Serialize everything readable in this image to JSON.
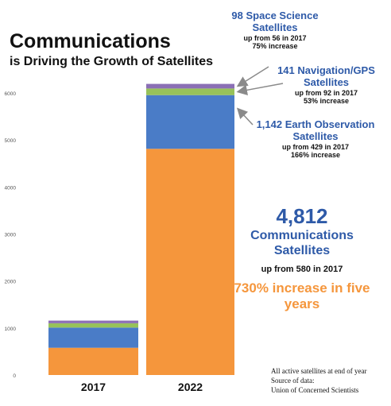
{
  "title": "Communications",
  "subtitle": "is Driving the Growth of Satellites",
  "colors": {
    "communications": "#f5963c",
    "earth_observation": "#4a7cc7",
    "navigation": "#97c25a",
    "space_science": "#8b6fb5",
    "annotation_blue": "#2e5aa8",
    "arrow": "#8a8a8a"
  },
  "chart_data": {
    "type": "bar",
    "stacked": true,
    "categories": [
      "2017",
      "2022"
    ],
    "yticks": [
      "0",
      "1000",
      "2000",
      "3000",
      "4000",
      "5000",
      "6000"
    ],
    "ylim": [
      0,
      6300
    ],
    "grid": false,
    "series": [
      {
        "key": "communications",
        "values": [
          580,
          4812
        ]
      },
      {
        "key": "earth_observation",
        "values": [
          429,
          1142
        ]
      },
      {
        "key": "navigation",
        "values": [
          92,
          141
        ]
      },
      {
        "key": "space_science",
        "values": [
          56,
          98
        ]
      }
    ]
  },
  "annotations": {
    "space": {
      "label": "98 Space Science Satellites",
      "up": "up from 56 in 2017",
      "pct": "75% increase"
    },
    "nav": {
      "label": "141 Navigation/GPS Satellites",
      "up": "up from 92 in 2017",
      "pct": "53% increase"
    },
    "earth": {
      "label": "1,142 Earth Observation Satellites",
      "up": "up from 429 in 2017",
      "pct": "166% increase"
    },
    "comm": {
      "number": "4,812",
      "label": "Communications Satellites",
      "up": "up from 580 in 2017",
      "increase": "730% increase in five years"
    }
  },
  "source": {
    "line1": "All active satellites at end of year",
    "line2": "Source of data:",
    "line3": "Union of Concerned Scientists"
  }
}
